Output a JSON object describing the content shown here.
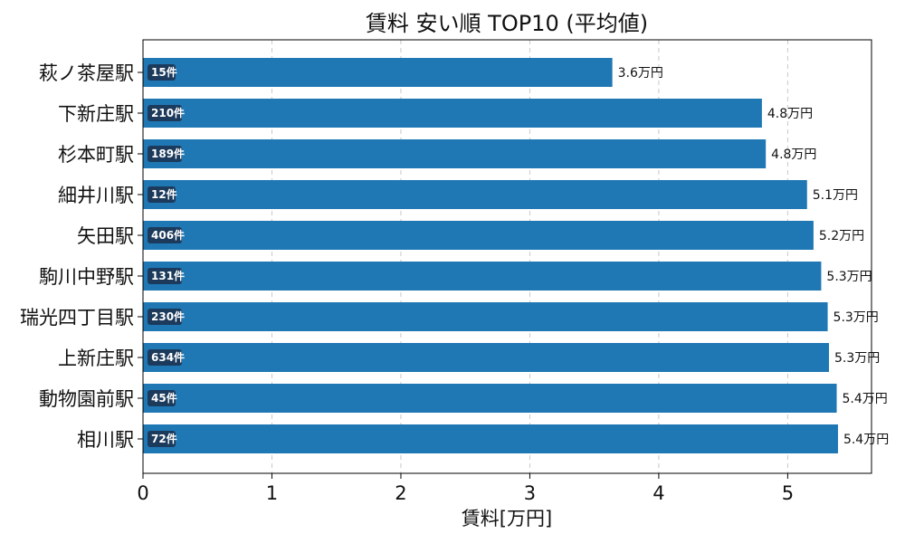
{
  "chart_data": {
    "type": "bar",
    "orientation": "horizontal",
    "title": "賃料 安い順 TOP10 (平均値)",
    "xlabel": "賃料[万円]",
    "ylabel": "",
    "xlim": [
      0,
      5.65
    ],
    "xticks": [
      "0",
      "1",
      "2",
      "3",
      "4",
      "5"
    ],
    "grid": "x-dashed",
    "bar_color": "#1f77b4",
    "badge_color": "#1b3a5c",
    "categories": [
      "萩ノ茶屋駅",
      "下新庄駅",
      "杉本町駅",
      "細井川駅",
      "矢田駅",
      "駒川中野駅",
      "瑞光四丁目駅",
      "上新庄駅",
      "動物園前駅",
      "相川駅"
    ],
    "values": [
      3.64,
      4.8,
      4.83,
      5.15,
      5.2,
      5.26,
      5.31,
      5.32,
      5.38,
      5.39
    ],
    "value_labels": [
      "3.6万円",
      "4.8万円",
      "4.8万円",
      "5.1万円",
      "5.2万円",
      "5.3万円",
      "5.3万円",
      "5.3万円",
      "5.4万円",
      "5.4万円"
    ],
    "count_labels": [
      "15件",
      "210件",
      "189件",
      "12件",
      "406件",
      "131件",
      "230件",
      "634件",
      "45件",
      "72件"
    ]
  }
}
